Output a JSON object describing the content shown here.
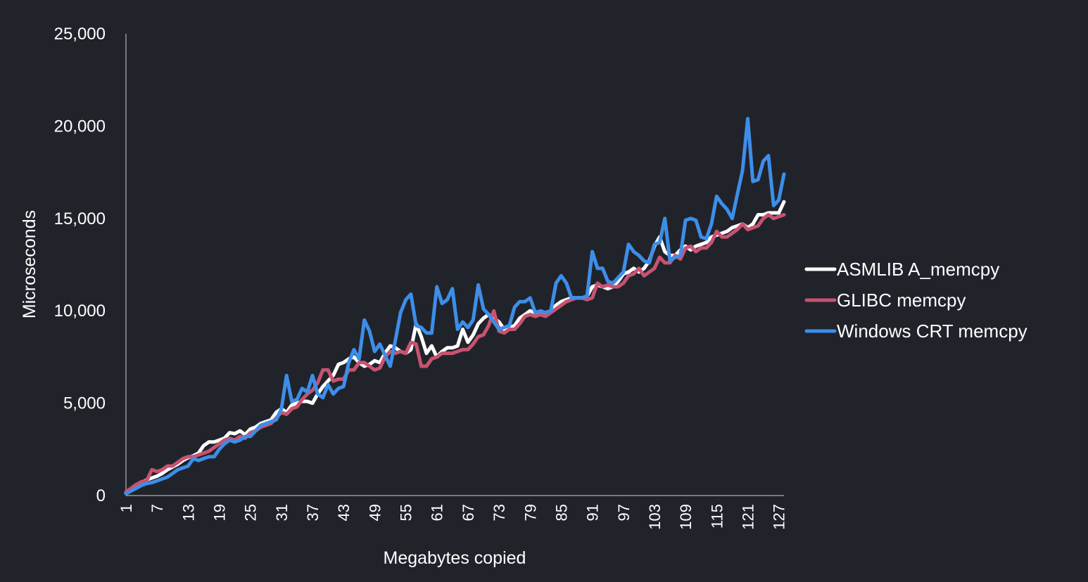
{
  "colors": {
    "background": "#21232b",
    "axis": "#d0d0d0",
    "text": "#ffffff"
  },
  "chart_data": {
    "type": "line",
    "title": "",
    "xlabel": "Megabytes copied",
    "ylabel": "Microseconds",
    "ylim": [
      0,
      25000
    ],
    "y_ticks": [
      0,
      5000,
      10000,
      15000,
      20000,
      25000
    ],
    "y_tick_labels": [
      "0",
      "5,000",
      "10,000",
      "15,000",
      "20,000",
      "25,000"
    ],
    "x": [
      1,
      2,
      3,
      4,
      5,
      6,
      7,
      8,
      9,
      10,
      11,
      12,
      13,
      14,
      15,
      16,
      17,
      18,
      19,
      20,
      21,
      22,
      23,
      24,
      25,
      26,
      27,
      28,
      29,
      30,
      31,
      32,
      33,
      34,
      35,
      36,
      37,
      38,
      39,
      40,
      41,
      42,
      43,
      44,
      45,
      46,
      47,
      48,
      49,
      50,
      51,
      52,
      53,
      54,
      55,
      56,
      57,
      58,
      59,
      60,
      61,
      62,
      63,
      64,
      65,
      66,
      67,
      68,
      69,
      70,
      71,
      72,
      73,
      74,
      75,
      76,
      77,
      78,
      79,
      80,
      81,
      82,
      83,
      84,
      85,
      86,
      87,
      88,
      89,
      90,
      91,
      92,
      93,
      94,
      95,
      96,
      97,
      98,
      99,
      100,
      101,
      102,
      103,
      104,
      105,
      106,
      107,
      108,
      109,
      110,
      111,
      112,
      113,
      114,
      115,
      116,
      117,
      118,
      119,
      120,
      121,
      122,
      123,
      124,
      125,
      126,
      127,
      128
    ],
    "x_tick_labels": [
      "1",
      "7",
      "13",
      "19",
      "25",
      "31",
      "37",
      "43",
      "49",
      "55",
      "61",
      "67",
      "73",
      "79",
      "85",
      "91",
      "97",
      "103",
      "109",
      "115",
      "121",
      "127"
    ],
    "x_tick_values": [
      1,
      7,
      13,
      19,
      25,
      31,
      37,
      43,
      49,
      55,
      61,
      67,
      73,
      79,
      85,
      91,
      97,
      103,
      109,
      115,
      121,
      127
    ],
    "grid": false,
    "legend_position": "right",
    "series": [
      {
        "name": "ASMLIB A_memcpy",
        "color": "#ffffff",
        "values": [
          150,
          350,
          550,
          700,
          850,
          950,
          1050,
          1200,
          1400,
          1550,
          1700,
          1900,
          2050,
          2150,
          2300,
          2700,
          2900,
          2900,
          3000,
          3100,
          3400,
          3350,
          3500,
          3300,
          3600,
          3700,
          3900,
          4000,
          4100,
          4500,
          4700,
          4500,
          4900,
          5000,
          5100,
          5100,
          5000,
          5500,
          5900,
          6200,
          6500,
          7100,
          7200,
          7400,
          7500,
          7200,
          7000,
          7100,
          7300,
          7200,
          7700,
          8100,
          8000,
          7800,
          7700,
          7900,
          9300,
          8600,
          7700,
          8100,
          7500,
          7800,
          8000,
          8000,
          8100,
          9000,
          8300,
          8700,
          9300,
          9600,
          9800,
          9600,
          9400,
          9000,
          9100,
          9200,
          9600,
          9800,
          10000,
          9900,
          9900,
          9900,
          10000,
          10300,
          10500,
          10600,
          10700,
          10700,
          10700,
          10800,
          11300,
          11400,
          11300,
          11200,
          11300,
          11600,
          12000,
          12100,
          12300,
          12100,
          12300,
          12700,
          13500,
          14000,
          13200,
          13000,
          13000,
          13300,
          13500,
          13300,
          13500,
          13600,
          13700,
          14000,
          14100,
          14200,
          14300,
          14500,
          14600,
          14700,
          14500,
          14700,
          15200,
          15200,
          15300,
          15300,
          15300,
          15900
        ]
      },
      {
        "name": "GLIBC memcpy",
        "color": "#c75370",
        "values": [
          200,
          400,
          600,
          750,
          800,
          1400,
          1300,
          1400,
          1600,
          1600,
          1800,
          2000,
          2100,
          2100,
          2200,
          2300,
          2400,
          2600,
          2800,
          3000,
          3100,
          3000,
          3200,
          3100,
          3400,
          3500,
          3700,
          3800,
          3900,
          4200,
          4500,
          4400,
          4700,
          4800,
          5200,
          5500,
          5700,
          6100,
          6800,
          6800,
          6200,
          6300,
          6300,
          6800,
          6800,
          7200,
          7200,
          7000,
          6800,
          6900,
          7500,
          7800,
          7700,
          7800,
          7700,
          8300,
          8200,
          7000,
          7000,
          7400,
          7500,
          7700,
          7700,
          7700,
          7800,
          7900,
          7900,
          8200,
          8600,
          8700,
          9200,
          10000,
          8900,
          8800,
          9000,
          9000,
          9300,
          9700,
          9800,
          9700,
          9800,
          9700,
          9900,
          10100,
          10300,
          10500,
          10600,
          10700,
          10700,
          10600,
          10700,
          11500,
          11300,
          11400,
          11300,
          11300,
          11500,
          11900,
          12000,
          12300,
          11900,
          12100,
          12300,
          12900,
          12600,
          12600,
          13000,
          12800,
          13400,
          13500,
          13200,
          13400,
          13400,
          13700,
          14300,
          14000,
          14000,
          14200,
          14400,
          14700,
          14400,
          14500,
          14600,
          15000,
          15200,
          15000,
          15100,
          15200
        ]
      },
      {
        "name": "Windows CRT memcpy",
        "color": "#3d8ee8",
        "values": [
          100,
          250,
          400,
          550,
          650,
          700,
          800,
          900,
          1000,
          1200,
          1400,
          1500,
          1600,
          2000,
          1900,
          2000,
          2100,
          2100,
          2500,
          2800,
          3000,
          2900,
          3000,
          3200,
          3200,
          3500,
          3800,
          3900,
          4000,
          4100,
          4700,
          6500,
          5100,
          5200,
          5800,
          5600,
          6500,
          5500,
          5300,
          6000,
          5500,
          5800,
          5900,
          7200,
          7900,
          7400,
          9500,
          8900,
          7800,
          8200,
          7600,
          7000,
          8400,
          9900,
          10600,
          10900,
          9200,
          9100,
          8800,
          8800,
          11300,
          10400,
          10600,
          11200,
          9000,
          9400,
          9100,
          9500,
          11400,
          10100,
          9800,
          9400,
          9000,
          9100,
          9200,
          10200,
          10500,
          10500,
          10700,
          9900,
          10000,
          9900,
          10000,
          11500,
          11900,
          11500,
          10700,
          10700,
          10700,
          10800,
          13200,
          12300,
          12300,
          11600,
          11500,
          11800,
          12100,
          13600,
          13200,
          13000,
          12700,
          12600,
          13600,
          13700,
          15000,
          12700,
          12900,
          13000,
          14900,
          15000,
          14900,
          14000,
          13900,
          14700,
          16200,
          15800,
          15500,
          15000,
          16300,
          17600,
          20400,
          17000,
          17100,
          18100,
          18400,
          15700,
          16000,
          17400
        ]
      }
    ]
  }
}
